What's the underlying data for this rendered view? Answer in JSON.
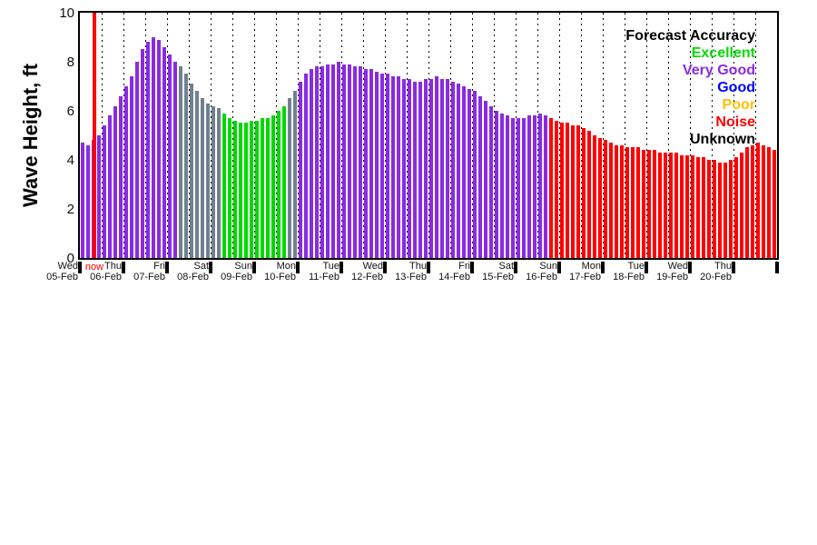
{
  "background": "#ffffff",
  "chart_data": {
    "type": "bar",
    "title": "",
    "ylabel": "Wave Height, ft",
    "xlabel": "",
    "ylim": [
      0,
      10
    ],
    "yticks": [
      0,
      2,
      4,
      6,
      8,
      10
    ],
    "bars_per_day": 8,
    "grid": "vertical-dotted-every-half-day",
    "now_label": "now",
    "now_position_days": 0.33,
    "now_color": "#ff0000",
    "days": [
      {
        "weekday": "Wed",
        "date": "05-Feb"
      },
      {
        "weekday": "Thu",
        "date": "06-Feb"
      },
      {
        "weekday": "Fri",
        "date": "07-Feb"
      },
      {
        "weekday": "Sat",
        "date": "08-Feb"
      },
      {
        "weekday": "Sun",
        "date": "09-Feb"
      },
      {
        "weekday": "Mon",
        "date": "10-Feb"
      },
      {
        "weekday": "Tue",
        "date": "11-Feb"
      },
      {
        "weekday": "Wed",
        "date": "12-Feb"
      },
      {
        "weekday": "Thu",
        "date": "13-Feb"
      },
      {
        "weekday": "Fri",
        "date": "14-Feb"
      },
      {
        "weekday": "Sat",
        "date": "15-Feb"
      },
      {
        "weekday": "Sun",
        "date": "16-Feb"
      },
      {
        "weekday": "Mon",
        "date": "17-Feb"
      },
      {
        "weekday": "Tue",
        "date": "18-Feb"
      },
      {
        "weekday": "Wed",
        "date": "19-Feb"
      },
      {
        "weekday": "Thu",
        "date": "20-Feb"
      }
    ],
    "values": [
      4.7,
      4.6,
      4.8,
      5.0,
      5.4,
      5.8,
      6.2,
      6.6,
      7.0,
      7.4,
      8.0,
      8.5,
      8.8,
      9.0,
      8.9,
      8.6,
      8.3,
      8.0,
      7.8,
      7.5,
      7.1,
      6.8,
      6.5,
      6.3,
      6.2,
      6.1,
      5.9,
      5.7,
      5.6,
      5.5,
      5.5,
      5.6,
      5.6,
      5.7,
      5.7,
      5.8,
      6.0,
      6.2,
      6.5,
      6.8,
      7.2,
      7.5,
      7.7,
      7.8,
      7.8,
      7.9,
      7.9,
      8.0,
      7.9,
      7.9,
      7.8,
      7.8,
      7.7,
      7.7,
      7.6,
      7.5,
      7.5,
      7.4,
      7.4,
      7.3,
      7.3,
      7.2,
      7.2,
      7.3,
      7.3,
      7.4,
      7.3,
      7.3,
      7.2,
      7.1,
      7.0,
      6.9,
      6.8,
      6.6,
      6.4,
      6.2,
      6.0,
      5.9,
      5.8,
      5.7,
      5.7,
      5.7,
      5.8,
      5.8,
      5.9,
      5.8,
      5.7,
      5.6,
      5.5,
      5.5,
      5.4,
      5.4,
      5.3,
      5.2,
      5.0,
      4.9,
      4.8,
      4.7,
      4.6,
      4.6,
      4.5,
      4.5,
      4.5,
      4.4,
      4.4,
      4.4,
      4.3,
      4.3,
      4.3,
      4.3,
      4.2,
      4.2,
      4.2,
      4.1,
      4.1,
      4.0,
      4.0,
      3.9,
      3.9,
      4.0,
      4.1,
      4.3,
      4.5,
      4.6,
      4.7,
      4.6,
      4.5,
      4.4
    ],
    "color_codes": "ppppppppppppppppppxxxxxxxxeeeeeeeeeeeexxppppppppppppppppppppppppppppppppppppppppppppppnnnnnnnnnnnnnnnnnnnnnnnnnnnnnnnnnnnnnnnnnn",
    "color_map": {
      "p": "#8a2be2",
      "e": "#00d900",
      "n": "#ff0000",
      "x": "#708090"
    },
    "legend": {
      "title": "Forecast Accuracy",
      "title_color": "#000000",
      "position": "top-right",
      "entries": [
        {
          "label": "Excellent",
          "color": "#00d900"
        },
        {
          "label": "Very Good",
          "color": "#8a2be2"
        },
        {
          "label": "Good",
          "color": "#0000ff"
        },
        {
          "label": "Poor",
          "color": "#ffc000"
        },
        {
          "label": "Noise",
          "color": "#ff0000"
        },
        {
          "label": "Unknown",
          "color": "#000000"
        }
      ]
    }
  }
}
